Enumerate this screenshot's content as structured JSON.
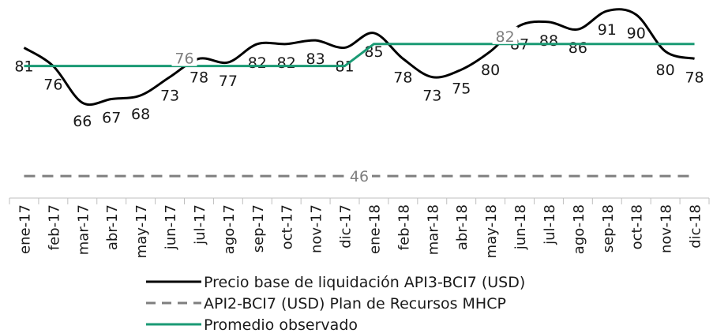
{
  "chart_data": {
    "type": "line",
    "categories": [
      "ene-17",
      "feb-17",
      "mar-17",
      "abr-17",
      "may-17",
      "jun-17",
      "jul-17",
      "ago-17",
      "sep-17",
      "oct-17",
      "nov-17",
      "dic-17",
      "ene-18",
      "feb-18",
      "mar-18",
      "abr-18",
      "may-18",
      "jun-18",
      "jul-18",
      "ago-18",
      "sep-18",
      "oct-18",
      "nov-18",
      "dic-18"
    ],
    "series": [
      {
        "name": "Precio base de liquidación API3-BCI7 (USD)",
        "color": "#000000",
        "style": "smooth",
        "values": [
          81,
          76,
          66,
          67,
          68,
          73,
          78,
          77,
          82,
          82,
          83,
          81,
          85,
          78,
          73,
          75,
          80,
          87,
          88,
          86,
          91,
          90,
          80,
          78
        ]
      },
      {
        "name": "API2-BCI7 (USD) Plan de Recursos MHCP",
        "color": "#7f7f7f",
        "style": "dashed",
        "values": [
          46,
          46,
          46,
          46,
          46,
          46,
          46,
          46,
          46,
          46,
          46,
          46,
          46,
          46,
          46,
          46,
          46,
          46,
          46,
          46,
          46,
          46,
          46,
          46
        ]
      },
      {
        "name": "Promedio observado",
        "color": "#1a9a74",
        "style": "solid",
        "values": [
          76,
          76,
          76,
          76,
          76,
          76,
          76,
          76,
          76,
          76,
          76,
          76,
          82,
          82,
          82,
          82,
          82,
          82,
          82,
          82,
          82,
          82,
          82,
          82
        ]
      }
    ],
    "ylim": [
      40,
      94
    ],
    "legend": "bottom"
  }
}
